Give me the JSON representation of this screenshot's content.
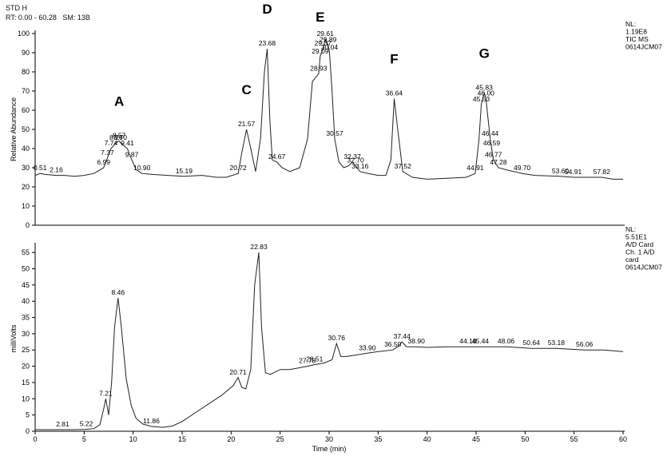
{
  "header": {
    "line1": "STD H",
    "line2": "RT: 0.00 - 60.28   SM: 13B"
  },
  "chart_data": [
    {
      "type": "line",
      "ylabel": "Relative Abundance",
      "xlim": [
        0,
        60
      ],
      "ylim": [
        0,
        100
      ],
      "yticks": [
        0,
        10,
        20,
        30,
        40,
        50,
        60,
        70,
        80,
        90,
        100
      ],
      "info": [
        "NL:",
        "1.19E8",
        "TIC  MS",
        "0614JCM07"
      ],
      "x": [
        0,
        0.51,
        1.0,
        2.16,
        3.0,
        4.0,
        5.0,
        6.0,
        6.99,
        7.37,
        7.74,
        8.26,
        8.57,
        8.7,
        9.41,
        9.87,
        10.3,
        10.9,
        12.0,
        13.5,
        15.19,
        17.0,
        18.5,
        19.5,
        20.72,
        21.1,
        21.57,
        22.0,
        22.5,
        23.0,
        23.4,
        23.68,
        23.95,
        24.2,
        24.67,
        25.2,
        26.0,
        27.0,
        27.8,
        28.3,
        28.93,
        29.09,
        29.37,
        29.61,
        29.89,
        30.04,
        30.3,
        30.57,
        31.0,
        31.5,
        32.0,
        32.37,
        32.7,
        33.16,
        34.0,
        35.0,
        35.8,
        36.3,
        36.64,
        37.0,
        37.52,
        38.5,
        40.0,
        42.0,
        44.0,
        44.91,
        45.3,
        45.53,
        45.83,
        46.0,
        46.44,
        46.59,
        46.77,
        47.28,
        48.0,
        49.7,
        51.0,
        53.6,
        54.91,
        56.0,
        57.82,
        59.0,
        60.0
      ],
      "y": [
        26,
        27,
        26.5,
        26,
        26,
        25.5,
        26,
        27,
        30,
        35,
        40,
        43,
        44,
        43,
        40,
        34,
        29,
        27,
        26.5,
        26,
        25.5,
        26,
        25,
        25,
        27,
        38,
        50,
        40,
        28,
        45,
        80,
        92,
        55,
        34,
        33,
        30,
        28,
        30,
        45,
        75,
        79,
        88,
        92,
        97,
        94,
        90,
        70,
        45,
        33,
        30,
        31,
        33,
        31,
        28,
        27,
        26,
        26,
        34,
        66,
        50,
        28,
        25,
        24,
        24.5,
        25,
        27,
        45,
        63,
        69,
        66,
        45,
        40,
        34,
        30,
        29,
        27,
        26,
        25.5,
        25,
        25,
        25,
        24,
        24
      ],
      "peak_labels": [
        {
          "x": 0.51,
          "y": 27,
          "text": "0.51"
        },
        {
          "x": 2.16,
          "y": 26,
          "text": "2.16"
        },
        {
          "x": 6.99,
          "y": 30,
          "text": "6.99"
        },
        {
          "x": 7.37,
          "y": 35,
          "text": "7.37"
        },
        {
          "x": 7.74,
          "y": 40,
          "text": "7.74"
        },
        {
          "x": 8.26,
          "y": 43,
          "text": "8.26"
        },
        {
          "x": 8.57,
          "y": 44,
          "text": "8.57"
        },
        {
          "x": 8.7,
          "y": 43,
          "text": "8.70"
        },
        {
          "x": 9.41,
          "y": 40,
          "text": "9.41"
        },
        {
          "x": 9.87,
          "y": 34,
          "text": "9.87"
        },
        {
          "x": 10.9,
          "y": 27,
          "text": "10.90"
        },
        {
          "x": 15.19,
          "y": 25.5,
          "text": "15.19"
        },
        {
          "x": 20.72,
          "y": 27,
          "text": "20.72"
        },
        {
          "x": 21.57,
          "y": 50,
          "text": "21.57"
        },
        {
          "x": 23.68,
          "y": 92,
          "text": "23.68"
        },
        {
          "x": 24.67,
          "y": 33,
          "text": "24.67"
        },
        {
          "x": 28.93,
          "y": 79,
          "text": "28.93"
        },
        {
          "x": 29.09,
          "y": 88,
          "text": "29.09"
        },
        {
          "x": 29.37,
          "y": 92,
          "text": "29.37"
        },
        {
          "x": 29.61,
          "y": 97,
          "text": "29.61"
        },
        {
          "x": 29.89,
          "y": 94,
          "text": "29.89"
        },
        {
          "x": 30.04,
          "y": 90,
          "text": "30.04"
        },
        {
          "x": 30.57,
          "y": 45,
          "text": "30.57"
        },
        {
          "x": 32.37,
          "y": 33,
          "text": "32.37"
        },
        {
          "x": 32.7,
          "y": 31,
          "text": "32.70"
        },
        {
          "x": 33.16,
          "y": 28,
          "text": "33.16"
        },
        {
          "x": 36.64,
          "y": 66,
          "text": "36.64"
        },
        {
          "x": 37.52,
          "y": 28,
          "text": "37.52"
        },
        {
          "x": 44.91,
          "y": 27,
          "text": "44.91"
        },
        {
          "x": 45.53,
          "y": 63,
          "text": "45.53"
        },
        {
          "x": 45.83,
          "y": 69,
          "text": "45.83"
        },
        {
          "x": 46.0,
          "y": 66,
          "text": "46.00"
        },
        {
          "x": 46.44,
          "y": 45,
          "text": "46.44"
        },
        {
          "x": 46.59,
          "y": 40,
          "text": "46.59"
        },
        {
          "x": 46.77,
          "y": 34,
          "text": "46.77"
        },
        {
          "x": 47.28,
          "y": 30,
          "text": "47.28"
        },
        {
          "x": 49.7,
          "y": 27,
          "text": "49.70"
        },
        {
          "x": 53.6,
          "y": 25.5,
          "text": "53.60"
        },
        {
          "x": 54.91,
          "y": 25,
          "text": "54.91"
        },
        {
          "x": 57.82,
          "y": 25,
          "text": "57.82"
        }
      ],
      "annotations": [
        {
          "x": 8.57,
          "y": 44,
          "text": "A"
        },
        {
          "x": 21.57,
          "y": 50,
          "text": "C"
        },
        {
          "x": 23.68,
          "y": 92,
          "text": "D"
        },
        {
          "x": 29.09,
          "y": 88,
          "text": "E"
        },
        {
          "x": 36.64,
          "y": 66,
          "text": "F"
        },
        {
          "x": 45.83,
          "y": 69,
          "text": "G"
        }
      ]
    },
    {
      "type": "line",
      "xlabel": "Time (min)",
      "ylabel": "milliVolts",
      "xlim": [
        0,
        60
      ],
      "xticks": [
        0,
        5,
        10,
        15,
        20,
        25,
        30,
        35,
        40,
        45,
        50,
        55,
        60
      ],
      "ylim": [
        0,
        57
      ],
      "yticks": [
        0,
        5,
        10,
        15,
        20,
        25,
        30,
        35,
        40,
        45,
        50,
        55
      ],
      "info": [
        "NL:",
        "5.51E1",
        "A/D Card",
        "Ch. 1  A/D",
        "card",
        "0614JCM07"
      ],
      "x": [
        0,
        1.0,
        2.81,
        4.0,
        5.22,
        6.0,
        6.6,
        7.0,
        7.21,
        7.5,
        7.8,
        8.1,
        8.46,
        8.8,
        9.3,
        9.8,
        10.3,
        11.0,
        11.86,
        13.0,
        14.0,
        15.0,
        17.0,
        19.0,
        20.2,
        20.71,
        21.1,
        21.5,
        22.0,
        22.4,
        22.83,
        23.1,
        23.5,
        24.0,
        25.0,
        26.0,
        27.78,
        28.51,
        29.5,
        30.3,
        30.76,
        31.2,
        31.8,
        33.9,
        35.0,
        36.5,
        37.0,
        37.44,
        37.9,
        38.9,
        40.0,
        42.0,
        44.18,
        45.44,
        48.06,
        50.64,
        53.18,
        56.06,
        58.0,
        60.0
      ],
      "y": [
        0.5,
        0.5,
        0.5,
        0.5,
        0.6,
        0.8,
        2.0,
        7.0,
        10.0,
        5.0,
        15.0,
        32.0,
        41.0,
        32.0,
        16.0,
        8.0,
        4.0,
        2.2,
        1.5,
        1.2,
        1.6,
        3.0,
        7.0,
        11.0,
        14.0,
        16.5,
        13.5,
        13.0,
        19.0,
        45.0,
        55.0,
        32.0,
        18.0,
        17.5,
        19.0,
        19.0,
        20.0,
        20.5,
        21.0,
        22.0,
        27.0,
        23.0,
        23.0,
        24.0,
        24.5,
        25.0,
        26.0,
        27.5,
        26.0,
        26.0,
        25.8,
        26.0,
        26.0,
        26.0,
        26.0,
        25.5,
        25.5,
        25.0,
        25.0,
        24.5
      ],
      "peak_labels": [
        {
          "x": 2.81,
          "y": 0.5,
          "text": "2.81"
        },
        {
          "x": 5.22,
          "y": 0.6,
          "text": "5.22"
        },
        {
          "x": 7.21,
          "y": 10,
          "text": "7.21"
        },
        {
          "x": 8.46,
          "y": 41,
          "text": "8.46"
        },
        {
          "x": 11.86,
          "y": 1.5,
          "text": "11.86"
        },
        {
          "x": 20.71,
          "y": 16.5,
          "text": "20.71"
        },
        {
          "x": 22.83,
          "y": 55,
          "text": "22.83"
        },
        {
          "x": 27.78,
          "y": 20,
          "text": "27.78"
        },
        {
          "x": 28.51,
          "y": 20.5,
          "text": "28.51"
        },
        {
          "x": 30.76,
          "y": 27,
          "text": "30.76"
        },
        {
          "x": 33.9,
          "y": 24,
          "text": "33.90"
        },
        {
          "x": 36.5,
          "y": 25,
          "text": "36.50"
        },
        {
          "x": 37.44,
          "y": 27.5,
          "text": "37.44"
        },
        {
          "x": 38.9,
          "y": 26,
          "text": "38.90"
        },
        {
          "x": 44.18,
          "y": 26,
          "text": "44.18"
        },
        {
          "x": 45.44,
          "y": 26,
          "text": "45.44"
        },
        {
          "x": 48.06,
          "y": 26,
          "text": "48.06"
        },
        {
          "x": 50.64,
          "y": 25.5,
          "text": "50.64"
        },
        {
          "x": 53.18,
          "y": 25.5,
          "text": "53.18"
        },
        {
          "x": 56.06,
          "y": 25,
          "text": "56.06"
        }
      ]
    }
  ]
}
